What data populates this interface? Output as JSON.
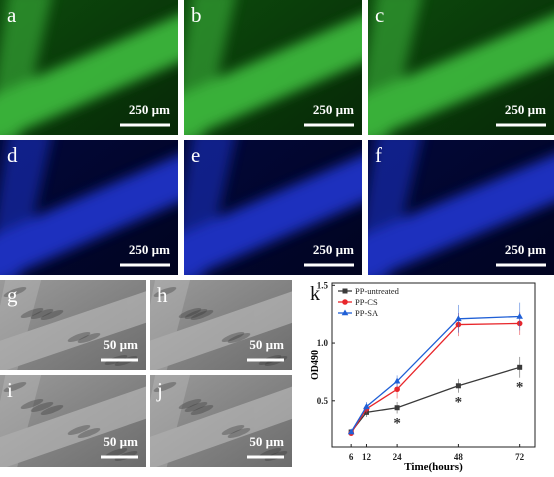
{
  "panels": [
    {
      "label": "a",
      "scale": "250 µm"
    },
    {
      "label": "b",
      "scale": "250 µm"
    },
    {
      "label": "c",
      "scale": "250 µm"
    },
    {
      "label": "d",
      "scale": "250 µm"
    },
    {
      "label": "e",
      "scale": "250 µm"
    },
    {
      "label": "f",
      "scale": "250 µm"
    },
    {
      "label": "g",
      "scale": "50 µm"
    },
    {
      "label": "h",
      "scale": "50 µm"
    },
    {
      "label": "i",
      "scale": "50 µm"
    },
    {
      "label": "j",
      "scale": "50 µm"
    }
  ],
  "chart_data": {
    "type": "line",
    "panel_label": "k",
    "x_label": "Time(hours)",
    "y_label": "OD490",
    "x": [
      6,
      12,
      24,
      48,
      72
    ],
    "xlim": [
      -1.5,
      78
    ],
    "xticks": [
      6,
      12,
      24,
      48,
      72
    ],
    "ylim": [
      0.1,
      1.52
    ],
    "yticks": [
      0.5,
      {
        "value": 1.0,
        "label": "1.0"
      },
      1.5
    ],
    "legend": "top-left",
    "grid": false,
    "series": [
      {
        "name": "PP-untreated",
        "color": "#3a3a3a",
        "marker": "square",
        "values": [
          0.23,
          0.4,
          0.44,
          0.63,
          0.79
        ],
        "errors": [
          0.02,
          0.04,
          0.05,
          0.06,
          0.09
        ]
      },
      {
        "name": "PP-CS",
        "color": "#e8262b",
        "marker": "circle",
        "values": [
          0.22,
          0.43,
          0.6,
          1.16,
          1.17
        ],
        "errors": [
          0.02,
          0.04,
          0.08,
          0.1,
          0.1
        ]
      },
      {
        "name": "PP-SA",
        "color": "#1f5fd6",
        "marker": "triangle",
        "values": [
          0.23,
          0.45,
          0.67,
          1.21,
          1.23
        ],
        "errors": [
          0.02,
          0.04,
          0.05,
          0.12,
          0.12
        ]
      }
    ],
    "annotations": [
      {
        "text": "*",
        "x": 24
      },
      {
        "text": "*",
        "x": 48
      },
      {
        "text": "*",
        "x": 72
      }
    ]
  }
}
